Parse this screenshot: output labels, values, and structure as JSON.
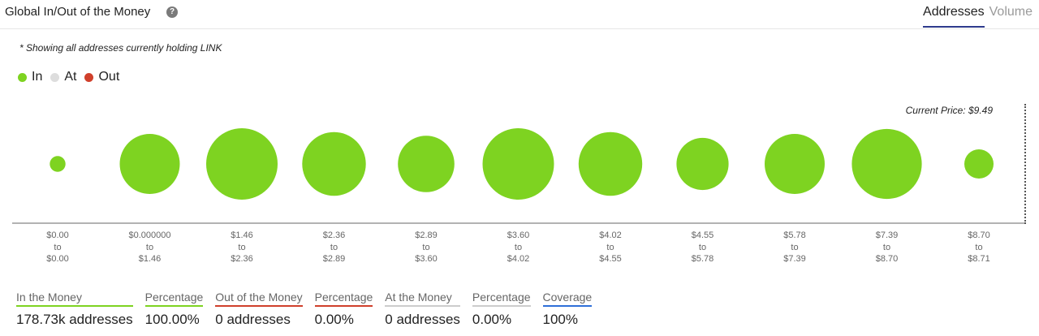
{
  "header": {
    "title": "Global In/Out of the Money",
    "help_icon": "question-icon",
    "tabs": [
      {
        "label": "Addresses",
        "active": true
      },
      {
        "label": "Volume",
        "active": false
      }
    ]
  },
  "note": "* Showing all addresses currently holding LINK",
  "legend": [
    {
      "label": "In",
      "color": "#7ed321"
    },
    {
      "label": "At",
      "color": "#dddddd"
    },
    {
      "label": "Out",
      "color": "#d0402b"
    }
  ],
  "current_price_label": "Current Price: $9.49",
  "chart_data": {
    "type": "scatter",
    "series_color": "#7ed321",
    "buckets": [
      {
        "from": "$0.00",
        "to": "$0.00",
        "relative_size": 0.22
      },
      {
        "from": "$0.000000",
        "to": "$1.46",
        "relative_size": 0.84
      },
      {
        "from": "$1.46",
        "to": "$2.36",
        "relative_size": 1.0
      },
      {
        "from": "$2.36",
        "to": "$2.89",
        "relative_size": 0.89
      },
      {
        "from": "$2.89",
        "to": "$3.60",
        "relative_size": 0.79
      },
      {
        "from": "$3.60",
        "to": "$4.02",
        "relative_size": 1.0
      },
      {
        "from": "$4.02",
        "to": "$4.55",
        "relative_size": 0.89
      },
      {
        "from": "$4.55",
        "to": "$5.78",
        "relative_size": 0.73
      },
      {
        "from": "$5.78",
        "to": "$7.39",
        "relative_size": 0.84
      },
      {
        "from": "$7.39",
        "to": "$8.70",
        "relative_size": 0.98
      },
      {
        "from": "$8.70",
        "to": "$8.71",
        "relative_size": 0.41
      }
    ],
    "tick_joiner": "to"
  },
  "stats": [
    {
      "label": "In the Money",
      "value": "178.73k addresses",
      "underline": "#7ed321"
    },
    {
      "label": "Percentage",
      "value": "100.00%",
      "underline": "#7ed321"
    },
    {
      "label": "Out of the Money",
      "value": "0 addresses",
      "underline": "#d0402b"
    },
    {
      "label": "Percentage",
      "value": "0.00%",
      "underline": "#d0402b"
    },
    {
      "label": "At the Money",
      "value": "0 addresses",
      "underline": "#cccccc"
    },
    {
      "label": "Percentage",
      "value": "0.00%",
      "underline": "#cccccc"
    },
    {
      "label": "Coverage",
      "value": "100%",
      "underline": "#2f6fd8"
    }
  ]
}
